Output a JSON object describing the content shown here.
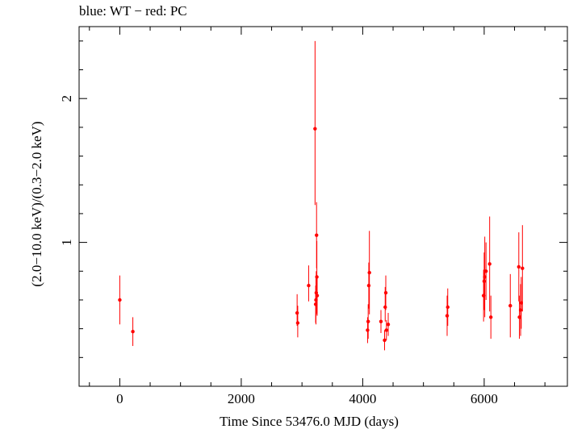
{
  "chart_data": {
    "type": "scatter",
    "title": "blue: WT − red: PC",
    "xlabel": "Time Since 53476.0 MJD (days)",
    "ylabel": "(2.0−10.0 keV)/(0.3−2.0 keV)",
    "xlim": [
      -670,
      7370
    ],
    "ylim": [
      0.0,
      2.5
    ],
    "x_ticks_major": [
      0,
      2000,
      4000,
      6000
    ],
    "x_tick_labels": [
      "0",
      "2000",
      "4000",
      "6000"
    ],
    "y_ticks_major": [
      1,
      2
    ],
    "y_tick_labels": [
      "1",
      "2"
    ],
    "grid": false,
    "series": [
      {
        "color": "#ff0000",
        "points": [
          {
            "x": 0,
            "y": 0.6,
            "err_low": 0.17,
            "err_high": 0.17
          },
          {
            "x": 215,
            "y": 0.38,
            "err_low": 0.1,
            "err_high": 0.1
          },
          {
            "x": 2920,
            "y": 0.51,
            "err_low": 0.09,
            "err_high": 0.13
          },
          {
            "x": 2930,
            "y": 0.44,
            "err_low": 0.1,
            "err_high": 0.12
          },
          {
            "x": 3110,
            "y": 0.7,
            "err_low": 0.11,
            "err_high": 0.14
          },
          {
            "x": 3215,
            "y": 1.79,
            "err_low": 0.53,
            "err_high": 0.61
          },
          {
            "x": 3225,
            "y": 0.57,
            "err_low": 0.13,
            "err_high": 0.13
          },
          {
            "x": 3230,
            "y": 0.6,
            "err_low": 0.17,
            "err_high": 0.17
          },
          {
            "x": 3235,
            "y": 0.65,
            "err_low": 0.15,
            "err_high": 0.15
          },
          {
            "x": 3240,
            "y": 1.05,
            "err_low": 0.23,
            "err_high": 0.23
          },
          {
            "x": 3245,
            "y": 0.76,
            "err_low": 0.25,
            "err_high": 0.25
          },
          {
            "x": 3250,
            "y": 0.63,
            "err_low": 0.14,
            "err_high": 0.14
          },
          {
            "x": 4080,
            "y": 0.39,
            "err_low": 0.09,
            "err_high": 0.09
          },
          {
            "x": 4090,
            "y": 0.45,
            "err_low": 0.12,
            "err_high": 0.12
          },
          {
            "x": 4100,
            "y": 0.7,
            "err_low": 0.16,
            "err_high": 0.16
          },
          {
            "x": 4110,
            "y": 0.79,
            "err_low": 0.29,
            "err_high": 0.29
          },
          {
            "x": 4300,
            "y": 0.45,
            "err_low": 0.08,
            "err_high": 0.08
          },
          {
            "x": 4360,
            "y": 0.32,
            "err_low": 0.07,
            "err_high": 0.07
          },
          {
            "x": 4370,
            "y": 0.55,
            "err_low": 0.1,
            "err_high": 0.14
          },
          {
            "x": 4380,
            "y": 0.65,
            "err_low": 0.12,
            "err_high": 0.12
          },
          {
            "x": 4390,
            "y": 0.39,
            "err_low": 0.07,
            "err_high": 0.07
          },
          {
            "x": 4420,
            "y": 0.43,
            "err_low": 0.08,
            "err_high": 0.08
          },
          {
            "x": 5390,
            "y": 0.49,
            "err_low": 0.14,
            "err_high": 0.14
          },
          {
            "x": 5400,
            "y": 0.55,
            "err_low": 0.13,
            "err_high": 0.13
          },
          {
            "x": 5990,
            "y": 0.63,
            "err_low": 0.18,
            "err_high": 0.18
          },
          {
            "x": 6000,
            "y": 0.73,
            "err_low": 0.2,
            "err_high": 0.2
          },
          {
            "x": 6010,
            "y": 0.76,
            "err_low": 0.28,
            "err_high": 0.28
          },
          {
            "x": 6030,
            "y": 0.8,
            "err_low": 0.2,
            "err_high": 0.2
          },
          {
            "x": 6090,
            "y": 0.85,
            "err_low": 0.33,
            "err_high": 0.33
          },
          {
            "x": 6110,
            "y": 0.48,
            "err_low": 0.15,
            "err_high": 0.15
          },
          {
            "x": 6430,
            "y": 0.56,
            "err_low": 0.22,
            "err_high": 0.22
          },
          {
            "x": 6570,
            "y": 0.83,
            "err_low": 0.24,
            "err_high": 0.24
          },
          {
            "x": 6580,
            "y": 0.48,
            "err_low": 0.15,
            "err_high": 0.15
          },
          {
            "x": 6600,
            "y": 0.53,
            "err_low": 0.18,
            "err_high": 0.18
          },
          {
            "x": 6610,
            "y": 0.58,
            "err_low": 0.18,
            "err_high": 0.18
          },
          {
            "x": 6630,
            "y": 0.82,
            "err_low": 0.3,
            "err_high": 0.3
          }
        ]
      }
    ]
  }
}
